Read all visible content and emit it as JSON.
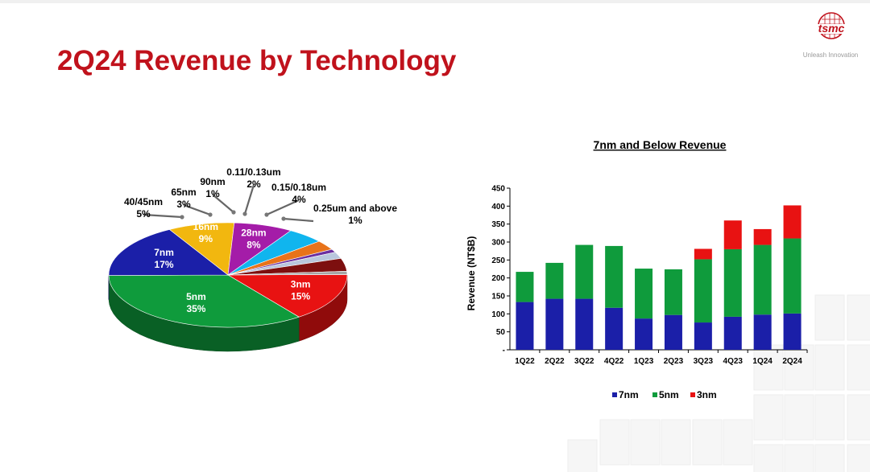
{
  "slide": {
    "title": "2Q24 Revenue by Technology",
    "logo_text": "tsmc",
    "tagline": "Unleash Innovation",
    "brand_color": "#c0121c"
  },
  "chart_data": [
    {
      "type": "pie",
      "slices": [
        {
          "label": "3nm",
          "value": 15,
          "value_label": "15%",
          "color": "#e81212"
        },
        {
          "label": "5nm",
          "value": 35,
          "value_label": "35%",
          "color": "#0f9b3c"
        },
        {
          "label": "7nm",
          "value": 17,
          "value_label": "17%",
          "color": "#1b1fa8"
        },
        {
          "label": "16nm",
          "value": 9,
          "value_label": "9%",
          "color": "#f2b70f"
        },
        {
          "label": "28nm",
          "value": 8,
          "value_label": "8%",
          "color": "#a41ca8"
        },
        {
          "label": "40/45nm",
          "value": 5,
          "value_label": "5%",
          "color": "#10b5ee"
        },
        {
          "label": "65nm",
          "value": 3,
          "value_label": "3%",
          "color": "#e8731a"
        },
        {
          "label": "90nm",
          "value": 1,
          "value_label": "1%",
          "color": "#6b2fa0"
        },
        {
          "label": "0.11/0.13um",
          "value": 2,
          "value_label": "2%",
          "color": "#b9c7dd"
        },
        {
          "label": "0.15/0.18um",
          "value": 4,
          "value_label": "4%",
          "color": "#7d0f0f"
        },
        {
          "label": "0.25um and above",
          "value": 1,
          "value_label": "1%",
          "color": "#a6a6a6"
        }
      ]
    },
    {
      "type": "bar",
      "stacked": true,
      "title": "7nm and Below Revenue",
      "ylabel": "Revenue (NT$B)",
      "ylim": [
        0,
        450
      ],
      "yticks": [
        "-",
        "50",
        "100",
        "150",
        "200",
        "250",
        "300",
        "350",
        "400",
        "450"
      ],
      "categories": [
        "1Q22",
        "2Q22",
        "3Q22",
        "4Q22",
        "1Q23",
        "2Q23",
        "3Q23",
        "4Q23",
        "1Q24",
        "2Q24"
      ],
      "series": [
        {
          "name": "7nm",
          "color": "#1b1fa8",
          "values": [
            133,
            142,
            142,
            117,
            87,
            97,
            76,
            92,
            98,
            101
          ]
        },
        {
          "name": "5nm",
          "color": "#0f9b3c",
          "values": [
            84,
            100,
            150,
            172,
            139,
            127,
            176,
            188,
            194,
            209
          ]
        },
        {
          "name": "3nm",
          "color": "#e81212",
          "values": [
            0,
            0,
            0,
            0,
            0,
            0,
            29,
            80,
            44,
            92
          ]
        }
      ],
      "legend_position": "bottom"
    }
  ]
}
